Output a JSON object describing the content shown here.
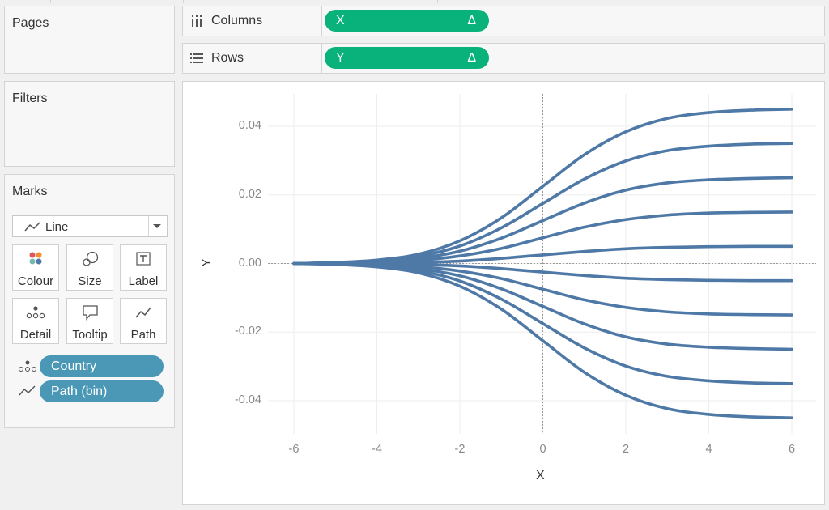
{
  "pages": {
    "title": "Pages"
  },
  "filters": {
    "title": "Filters"
  },
  "marks": {
    "title": "Marks",
    "mark_type": "Line",
    "buttons": [
      {
        "label": "Colour",
        "icon": "colour-icon"
      },
      {
        "label": "Size",
        "icon": "size-icon"
      },
      {
        "label": "Label",
        "icon": "label-icon"
      },
      {
        "label": "Detail",
        "icon": "detail-icon"
      },
      {
        "label": "Tooltip",
        "icon": "tooltip-icon"
      },
      {
        "label": "Path",
        "icon": "path-icon"
      }
    ],
    "fields": [
      {
        "label": "Country",
        "type": "detail"
      },
      {
        "label": "Path (bin)",
        "type": "path"
      }
    ]
  },
  "shelves": {
    "columns": {
      "label": "Columns",
      "pill": "X",
      "pill_suffix": "Δ"
    },
    "rows": {
      "label": "Rows",
      "pill": "Y",
      "pill_suffix": "Δ"
    }
  },
  "colors": {
    "line": "#4e79a7",
    "pill_green": "#08b27a",
    "pill_blue": "#4a98b5"
  },
  "chart_data": {
    "type": "line",
    "xlabel": "X",
    "ylabel": "Y",
    "xlim": [
      -6,
      6
    ],
    "ylim": [
      -0.05,
      0.05
    ],
    "xticks": [
      -6,
      -4,
      -2,
      0,
      2,
      4,
      6
    ],
    "yticks": [
      0.04,
      0.02,
      0.0,
      -0.02,
      -0.04
    ],
    "ytick_labels": [
      "0.04",
      "0.02",
      "0.00",
      "-0.02",
      "-0.04"
    ],
    "grid": true,
    "reference_lines": {
      "x": 0,
      "y": 0
    },
    "x": [
      -6,
      -5,
      -4,
      -3,
      -2,
      -1,
      0,
      1,
      2,
      3,
      4,
      5,
      6
    ],
    "series": [
      {
        "values": [
          0.0,
          0.0003,
          0.001,
          0.0027,
          0.0066,
          0.0133,
          0.0225,
          0.0317,
          0.0384,
          0.0423,
          0.044,
          0.0447,
          0.045
        ]
      },
      {
        "values": [
          0.0,
          0.0002,
          0.0008,
          0.0021,
          0.0051,
          0.0104,
          0.0175,
          0.0246,
          0.0299,
          0.0329,
          0.0342,
          0.0348,
          0.035
        ]
      },
      {
        "values": [
          0.0,
          0.0001,
          0.0006,
          0.0015,
          0.0036,
          0.0074,
          0.0125,
          0.0176,
          0.0214,
          0.0235,
          0.0244,
          0.0248,
          0.025
        ]
      },
      {
        "values": [
          0.0,
          0.0001,
          0.0003,
          0.0009,
          0.0022,
          0.0044,
          0.0075,
          0.0106,
          0.0128,
          0.0141,
          0.0147,
          0.0149,
          0.015
        ]
      },
      {
        "values": [
          0.0,
          0.0,
          0.0001,
          0.0003,
          0.0007,
          0.0015,
          0.0025,
          0.0035,
          0.0043,
          0.0047,
          0.0049,
          0.005,
          0.005
        ]
      },
      {
        "values": [
          0.0,
          0.0,
          -0.0001,
          -0.0003,
          -0.0007,
          -0.0015,
          -0.0025,
          -0.0035,
          -0.0043,
          -0.0047,
          -0.0049,
          -0.005,
          -0.005
        ]
      },
      {
        "values": [
          0.0,
          -0.0001,
          -0.0003,
          -0.0009,
          -0.0022,
          -0.0044,
          -0.0075,
          -0.0106,
          -0.0128,
          -0.0141,
          -0.0147,
          -0.0149,
          -0.015
        ]
      },
      {
        "values": [
          0.0,
          -0.0001,
          -0.0006,
          -0.0015,
          -0.0036,
          -0.0074,
          -0.0125,
          -0.0176,
          -0.0214,
          -0.0235,
          -0.0244,
          -0.0248,
          -0.025
        ]
      },
      {
        "values": [
          0.0,
          -0.0002,
          -0.0008,
          -0.0021,
          -0.0051,
          -0.0104,
          -0.0175,
          -0.0246,
          -0.0299,
          -0.0329,
          -0.0342,
          -0.0348,
          -0.035
        ]
      },
      {
        "values": [
          0.0,
          -0.0003,
          -0.001,
          -0.0027,
          -0.0066,
          -0.0133,
          -0.0225,
          -0.0317,
          -0.0384,
          -0.0423,
          -0.044,
          -0.0447,
          -0.045
        ]
      }
    ]
  }
}
